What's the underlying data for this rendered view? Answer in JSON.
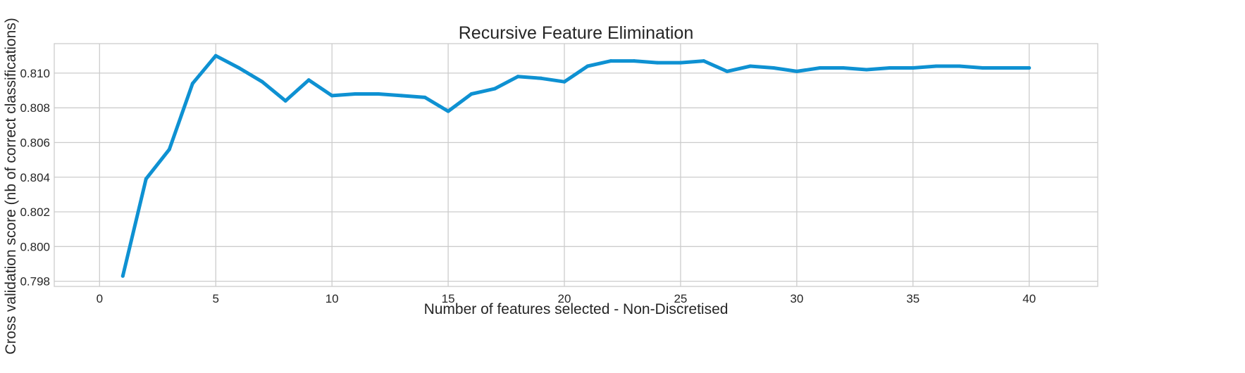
{
  "chart_data": {
    "type": "line",
    "title": "Recursive Feature Elimination",
    "xlabel": "Number of features selected - Non-Discretised",
    "ylabel": "Cross validation score (nb of correct classifications)",
    "xlim": [
      -1.95,
      42.95
    ],
    "ylim": [
      0.7977,
      0.8117
    ],
    "x_ticks": [
      0,
      5,
      10,
      15,
      20,
      25,
      30,
      35,
      40
    ],
    "x_tick_labels": [
      "0",
      "5",
      "10",
      "15",
      "20",
      "25",
      "30",
      "35",
      "40"
    ],
    "y_ticks": [
      0.798,
      0.8,
      0.802,
      0.804,
      0.806,
      0.808,
      0.81
    ],
    "y_tick_labels": [
      "0.798",
      "0.800",
      "0.802",
      "0.804",
      "0.806",
      "0.808",
      "0.810"
    ],
    "grid": true,
    "color": "#0e91d2",
    "series": [
      {
        "x": [
          1,
          2,
          3,
          4,
          5,
          6,
          7,
          8,
          9,
          10,
          11,
          12,
          13,
          14,
          15,
          16,
          17,
          18,
          19,
          20,
          21,
          22,
          23,
          24,
          25,
          26,
          27,
          28,
          29,
          30,
          31,
          32,
          33,
          34,
          35,
          36,
          37,
          38,
          39,
          40
        ],
        "values": [
          0.7983,
          0.8039,
          0.8056,
          0.8094,
          0.811,
          0.8103,
          0.8095,
          0.8084,
          0.8096,
          0.8087,
          0.8088,
          0.8088,
          0.8087,
          0.8086,
          0.8078,
          0.8088,
          0.8091,
          0.8098,
          0.8097,
          0.8095,
          0.8104,
          0.8107,
          0.8107,
          0.8106,
          0.8106,
          0.8107,
          0.8101,
          0.8104,
          0.8103,
          0.8101,
          0.8103,
          0.8103,
          0.8102,
          0.8103,
          0.8103,
          0.8104,
          0.8104,
          0.8103,
          0.8103,
          0.8103
        ]
      }
    ]
  }
}
